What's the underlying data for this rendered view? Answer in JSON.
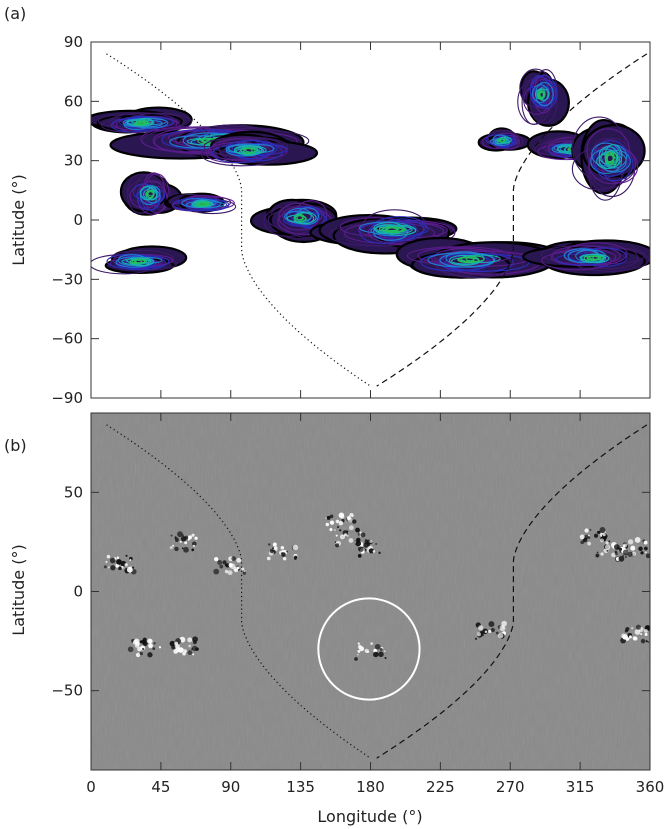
{
  "figure": {
    "panel_a_label": "(a)",
    "panel_b_label": "(b)"
  },
  "chart_data": [
    {
      "type": "contour",
      "panel": "(a)",
      "xlabel": "",
      "ylabel": "Latitude (°)",
      "xlim": [
        0,
        360
      ],
      "ylim": [
        -90,
        90
      ],
      "y_ticks": [
        90,
        60,
        30,
        0,
        -30,
        -60,
        -90
      ],
      "y_tick_labels": [
        "90",
        "60",
        "30",
        "0",
        "−30",
        "−60",
        "−90"
      ],
      "x_tick_labels_shown": false,
      "grid": false,
      "contour_colors": [
        "#000000",
        "#3b1a66",
        "#5a1c8c",
        "#2a2db8",
        "#1f7fd0",
        "#18b0b0",
        "#22c060"
      ],
      "regions": [
        {
          "lon": [
            0,
            65
          ],
          "lat": [
            42,
            56
          ]
        },
        {
          "lon": [
            18,
            140
          ],
          "lat": [
            30,
            50
          ]
        },
        {
          "lon": [
            65,
            140
          ],
          "lat": [
            26,
            44
          ]
        },
        {
          "lon": [
            20,
            55
          ],
          "lat": [
            0,
            26
          ]
        },
        {
          "lon": [
            45,
            100
          ],
          "lat": [
            2,
            14
          ]
        },
        {
          "lon": [
            108,
            162
          ],
          "lat": [
            -10,
            12
          ]
        },
        {
          "lon": [
            0,
            60
          ],
          "lat": [
            -28,
            -14
          ]
        },
        {
          "lon": [
            148,
            240
          ],
          "lat": [
            -16,
            6
          ]
        },
        {
          "lon": [
            250,
            280
          ],
          "lat": [
            34,
            46
          ]
        },
        {
          "lon": [
            275,
            305
          ],
          "lat": [
            48,
            78
          ]
        },
        {
          "lon": [
            280,
            340
          ],
          "lat": [
            28,
            44
          ]
        },
        {
          "lon": [
            310,
            360
          ],
          "lat": [
            10,
            52
          ]
        },
        {
          "lon": [
            190,
            300
          ],
          "lat": [
            -30,
            -10
          ]
        },
        {
          "lon": [
            285,
            360
          ],
          "lat": [
            -28,
            -10
          ]
        }
      ],
      "boundaries": [
        {
          "style": "dotted",
          "description": "polarity boundary (west)"
        },
        {
          "style": "dashed",
          "description": "polarity boundary (east)"
        }
      ]
    },
    {
      "type": "magnetogram",
      "panel": "(b)",
      "xlabel": "Longitude (°)",
      "ylabel": "Latitude (°)",
      "xlim": [
        0,
        360
      ],
      "ylim": [
        -90,
        90
      ],
      "x_ticks": [
        0,
        45,
        90,
        135,
        180,
        225,
        270,
        315,
        360
      ],
      "x_tick_labels": [
        "0",
        "45",
        "90",
        "135",
        "180",
        "225",
        "270",
        "315",
        "360"
      ],
      "y_ticks": [
        50,
        0,
        -50
      ],
      "y_tick_labels": [
        "50",
        "0",
        "−50"
      ],
      "background_color": "#8a8a8a",
      "grid": false,
      "active_regions": [
        {
          "lon": 60,
          "lat": 25
        },
        {
          "lon": 18,
          "lat": 14
        },
        {
          "lon": 90,
          "lat": 13
        },
        {
          "lon": 124,
          "lat": 20
        },
        {
          "lon": 160,
          "lat": 35
        },
        {
          "lon": 166,
          "lat": 27
        },
        {
          "lon": 177,
          "lat": 22
        },
        {
          "lon": 35,
          "lat": -28
        },
        {
          "lon": 60,
          "lat": -28
        },
        {
          "lon": 180,
          "lat": -30
        },
        {
          "lon": 257,
          "lat": -20
        },
        {
          "lon": 325,
          "lat": 28
        },
        {
          "lon": 335,
          "lat": 20
        },
        {
          "lon": 350,
          "lat": 22
        },
        {
          "lon": 352,
          "lat": -22
        }
      ],
      "highlight_circle": {
        "lon": 179,
        "lat": -29,
        "radius_deg": 20,
        "color": "#ffffff"
      },
      "boundaries": [
        {
          "style": "dotted",
          "description": "polarity boundary (west)"
        },
        {
          "style": "dashed",
          "description": "polarity boundary (east)"
        }
      ]
    }
  ]
}
